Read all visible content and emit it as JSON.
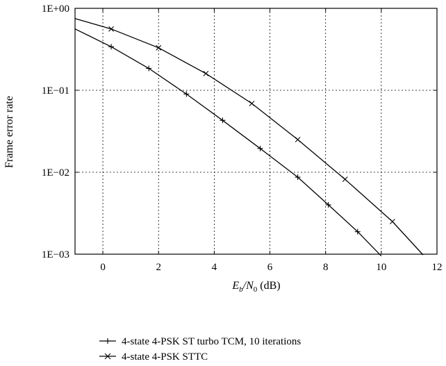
{
  "chart_data": {
    "type": "line",
    "xlabel_main": "E",
    "xlabel_sub": "b",
    "xlabel_mid": "/N",
    "xlabel_sub2": "0",
    "xlabel_tail": " (dB)",
    "ylabel": "Frame error rate",
    "xlim": [
      -1,
      12
    ],
    "ylim": [
      0.001,
      1
    ],
    "y_scale": "log",
    "grid": true,
    "x_ticks": [
      0,
      2,
      4,
      6,
      8,
      10,
      12
    ],
    "x_tick_labels": [
      "0",
      "2",
      "4",
      "6",
      "8",
      "10",
      "12"
    ],
    "y_ticks": [
      1,
      0.1,
      0.01,
      0.001
    ],
    "y_tick_labels": [
      "1E+00",
      "1E−01",
      "1E−02",
      "1E−03"
    ],
    "legend_position": "bottom",
    "series": [
      {
        "name": "4-state 4-PSK ST turbo TCM, 10 iterations",
        "marker": "plus",
        "curve": [
          [
            -1,
            0.56
          ],
          [
            0.3,
            0.34
          ],
          [
            1.65,
            0.185
          ],
          [
            3.0,
            0.09
          ],
          [
            4.3,
            0.043
          ],
          [
            5.65,
            0.0195
          ],
          [
            7.0,
            0.0087
          ],
          [
            8.1,
            0.004
          ],
          [
            9.15,
            0.00188
          ],
          [
            10.0,
            0.00095
          ]
        ],
        "marked": [
          [
            0.3,
            0.34
          ],
          [
            1.65,
            0.185
          ],
          [
            3.0,
            0.09
          ],
          [
            4.3,
            0.043
          ],
          [
            5.65,
            0.0195
          ],
          [
            7.0,
            0.0087
          ],
          [
            8.1,
            0.004
          ],
          [
            9.15,
            0.00188
          ]
        ]
      },
      {
        "name": "4-state 4-PSK STTC",
        "marker": "x",
        "curve": [
          [
            -1,
            0.75
          ],
          [
            0.3,
            0.56
          ],
          [
            2.0,
            0.33
          ],
          [
            3.7,
            0.16
          ],
          [
            5.35,
            0.069
          ],
          [
            7.0,
            0.025
          ],
          [
            8.7,
            0.0082
          ],
          [
            10.4,
            0.0025
          ],
          [
            11.5,
            0.00098
          ]
        ],
        "marked": [
          [
            0.3,
            0.56
          ],
          [
            2.0,
            0.33
          ],
          [
            3.7,
            0.16
          ],
          [
            5.35,
            0.069
          ],
          [
            7.0,
            0.025
          ],
          [
            8.7,
            0.0082
          ],
          [
            10.4,
            0.0025
          ]
        ]
      }
    ]
  }
}
